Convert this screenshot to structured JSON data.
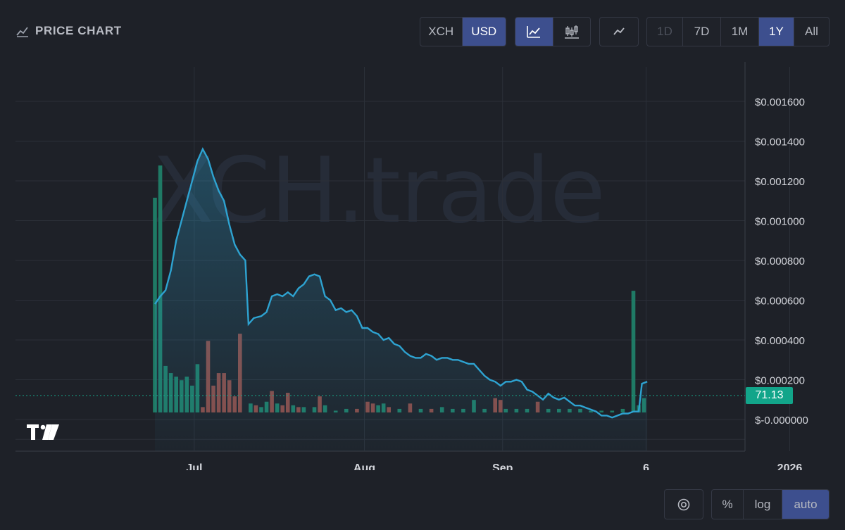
{
  "header": {
    "title": "PRICE CHART",
    "currency_options": [
      {
        "label": "XCH",
        "active": false
      },
      {
        "label": "USD",
        "active": true
      }
    ],
    "chart_types": [
      {
        "icon": "line-chart-icon",
        "active": true
      },
      {
        "icon": "candlestick-icon",
        "active": false
      }
    ],
    "indicator_icon": "trend-line-icon",
    "ranges": [
      {
        "label": "1D",
        "active": false,
        "disabled": true
      },
      {
        "label": "7D",
        "active": false,
        "disabled": false
      },
      {
        "label": "1M",
        "active": false,
        "disabled": false
      },
      {
        "label": "1Y",
        "active": true,
        "disabled": false
      },
      {
        "label": "All",
        "active": false,
        "disabled": false
      }
    ]
  },
  "watermark": "XCH.trade",
  "current_value_label": "71.13",
  "footer": {
    "target_icon": "target-icon",
    "scale_options": [
      {
        "label": "%",
        "active": false
      },
      {
        "label": "log",
        "active": false
      },
      {
        "label": "auto",
        "active": true
      }
    ]
  },
  "colors": {
    "line": "#2ea3d1",
    "volume_up": "#1f7a65",
    "volume_down": "#8a4a45",
    "tag": "#12a58a",
    "accent": "#3d4f8e"
  },
  "chart_data": {
    "type": "line",
    "y_ticks": [
      "$0.001600",
      "$0.001400",
      "$0.001200",
      "$0.001000",
      "$0.000800",
      "$0.000600",
      "$0.000400",
      "$0.000200",
      "$-0.000000"
    ],
    "y_tick_values": [
      0.0016,
      0.0014,
      0.0012,
      0.001,
      0.0008,
      0.0006,
      0.0004,
      0.0002,
      0
    ],
    "x_ticks": [
      "Jul",
      "Aug",
      "Sep",
      "6",
      "2026"
    ],
    "x_tick_positions": [
      18.5,
      34.5,
      47.5,
      61,
      74.5
    ],
    "price_series": [
      [
        0,
        0.00058
      ],
      [
        0.5,
        0.00062
      ],
      [
        1,
        0.00065
      ],
      [
        1.5,
        0.00075
      ],
      [
        2,
        0.0009
      ],
      [
        2.5,
        0.001
      ],
      [
        3,
        0.0011
      ],
      [
        3.5,
        0.0012
      ],
      [
        4,
        0.0013
      ],
      [
        4.5,
        0.00136
      ],
      [
        5,
        0.00131
      ],
      [
        5.5,
        0.00122
      ],
      [
        6,
        0.00115
      ],
      [
        6.5,
        0.0011
      ],
      [
        7,
        0.00098
      ],
      [
        7.5,
        0.00088
      ],
      [
        8,
        0.00083
      ],
      [
        8.5,
        0.0008
      ],
      [
        8.8,
        0.00048
      ],
      [
        9.3,
        0.00051
      ],
      [
        10,
        0.00052
      ],
      [
        10.5,
        0.00054
      ],
      [
        11,
        0.00062
      ],
      [
        11.5,
        0.00063
      ],
      [
        12,
        0.00062
      ],
      [
        12.5,
        0.00064
      ],
      [
        13,
        0.00062
      ],
      [
        13.5,
        0.00066
      ],
      [
        14,
        0.00068
      ],
      [
        14.5,
        0.00072
      ],
      [
        15,
        0.00073
      ],
      [
        15.5,
        0.00072
      ],
      [
        16,
        0.00062
      ],
      [
        16.5,
        0.0006
      ],
      [
        17,
        0.00055
      ],
      [
        17.5,
        0.00056
      ],
      [
        18,
        0.00054
      ],
      [
        18.5,
        0.00055
      ],
      [
        19,
        0.00052
      ],
      [
        19.5,
        0.00046
      ],
      [
        20,
        0.00046
      ],
      [
        20.5,
        0.00044
      ],
      [
        21,
        0.00043
      ],
      [
        21.5,
        0.0004
      ],
      [
        22,
        0.00041
      ],
      [
        22.5,
        0.00038
      ],
      [
        23,
        0.00037
      ],
      [
        23.5,
        0.00034
      ],
      [
        24,
        0.00032
      ],
      [
        24.5,
        0.00031
      ],
      [
        25,
        0.00031
      ],
      [
        25.5,
        0.00033
      ],
      [
        26,
        0.00032
      ],
      [
        26.5,
        0.0003
      ],
      [
        27,
        0.00031
      ],
      [
        27.5,
        0.00031
      ],
      [
        28,
        0.0003
      ],
      [
        28.5,
        0.0003
      ],
      [
        29,
        0.00029
      ],
      [
        29.5,
        0.00028
      ],
      [
        30,
        0.00028
      ],
      [
        30.5,
        0.00025
      ],
      [
        31,
        0.00022
      ],
      [
        31.5,
        0.0002
      ],
      [
        32,
        0.00019
      ],
      [
        32.5,
        0.00017
      ],
      [
        33,
        0.00019
      ],
      [
        33.5,
        0.00019
      ],
      [
        34,
        0.0002
      ],
      [
        34.5,
        0.00019
      ],
      [
        35,
        0.00015
      ],
      [
        35.5,
        0.00014
      ],
      [
        36,
        0.00012
      ],
      [
        36.5,
        0.0001
      ],
      [
        37,
        0.00013
      ],
      [
        37.5,
        0.00011
      ],
      [
        38,
        0.0001
      ],
      [
        38.5,
        0.00011
      ],
      [
        39,
        9e-05
      ],
      [
        39.5,
        7e-05
      ],
      [
        40,
        7e-05
      ],
      [
        40.5,
        6e-05
      ],
      [
        41,
        5e-05
      ],
      [
        41.5,
        4e-05
      ],
      [
        42,
        2e-05
      ],
      [
        42.5,
        2e-05
      ],
      [
        43,
        1e-05
      ],
      [
        43.5,
        2e-05
      ],
      [
        44,
        3e-05
      ],
      [
        44.5,
        3e-05
      ],
      [
        45,
        4e-05
      ],
      [
        45.5,
        4e-05
      ],
      [
        45.8,
        0.00018
      ],
      [
        46.3,
        0.00019
      ]
    ],
    "volume_bars": [
      [
        0,
        0.0012,
        "up"
      ],
      [
        0.5,
        0.00138,
        "up"
      ],
      [
        1,
        0.00026,
        "up"
      ],
      [
        1.5,
        0.00022,
        "up"
      ],
      [
        2,
        0.0002,
        "up"
      ],
      [
        2.5,
        0.00018,
        "up"
      ],
      [
        3,
        0.0002,
        "up"
      ],
      [
        3.5,
        0.00015,
        "up"
      ],
      [
        4,
        0.00027,
        "up"
      ],
      [
        4.5,
        3e-05,
        "down"
      ],
      [
        5,
        0.0004,
        "down"
      ],
      [
        5.5,
        0.00015,
        "down"
      ],
      [
        6,
        0.00022,
        "down"
      ],
      [
        6.5,
        0.00022,
        "down"
      ],
      [
        7,
        0.00018,
        "down"
      ],
      [
        7.5,
        9e-05,
        "down"
      ],
      [
        8,
        0.00044,
        "down"
      ],
      [
        9,
        5e-05,
        "up"
      ],
      [
        9.5,
        4e-05,
        "down"
      ],
      [
        10,
        3e-05,
        "up"
      ],
      [
        10.5,
        6e-05,
        "up"
      ],
      [
        11,
        0.00012,
        "down"
      ],
      [
        11.5,
        5e-05,
        "up"
      ],
      [
        12,
        4e-05,
        "down"
      ],
      [
        12.5,
        0.00011,
        "down"
      ],
      [
        13,
        4e-05,
        "up"
      ],
      [
        13.5,
        3e-05,
        "down"
      ],
      [
        14,
        3e-05,
        "up"
      ],
      [
        15,
        3e-05,
        "up"
      ],
      [
        15.5,
        9e-05,
        "down"
      ],
      [
        16,
        4e-05,
        "up"
      ],
      [
        17,
        1e-05,
        "up"
      ],
      [
        18,
        2e-05,
        "up"
      ],
      [
        19,
        2e-05,
        "down"
      ],
      [
        20,
        6e-05,
        "down"
      ],
      [
        20.5,
        5e-05,
        "down"
      ],
      [
        21,
        4e-05,
        "up"
      ],
      [
        21.5,
        5e-05,
        "up"
      ],
      [
        22,
        3e-05,
        "down"
      ],
      [
        23,
        2e-05,
        "up"
      ],
      [
        24,
        5e-05,
        "down"
      ],
      [
        25,
        2e-05,
        "up"
      ],
      [
        26,
        2e-05,
        "down"
      ],
      [
        27,
        3e-05,
        "up"
      ],
      [
        28,
        2e-05,
        "up"
      ],
      [
        29,
        2e-05,
        "up"
      ],
      [
        30,
        7e-05,
        "up"
      ],
      [
        31,
        2e-05,
        "up"
      ],
      [
        32,
        8e-05,
        "down"
      ],
      [
        32.5,
        7e-05,
        "down"
      ],
      [
        33,
        2e-05,
        "up"
      ],
      [
        34,
        2e-05,
        "up"
      ],
      [
        35,
        2e-05,
        "up"
      ],
      [
        36,
        6e-05,
        "down"
      ],
      [
        37,
        2e-05,
        "up"
      ],
      [
        38,
        2e-05,
        "up"
      ],
      [
        39,
        2e-05,
        "up"
      ],
      [
        40,
        2e-05,
        "up"
      ],
      [
        41,
        1e-05,
        "up"
      ],
      [
        42,
        1e-05,
        "up"
      ],
      [
        43,
        1e-05,
        "up"
      ],
      [
        44,
        2e-05,
        "up"
      ],
      [
        45,
        0.00068,
        "up"
      ],
      [
        45.5,
        4e-05,
        "up"
      ],
      [
        46,
        8e-05,
        "up"
      ]
    ]
  }
}
